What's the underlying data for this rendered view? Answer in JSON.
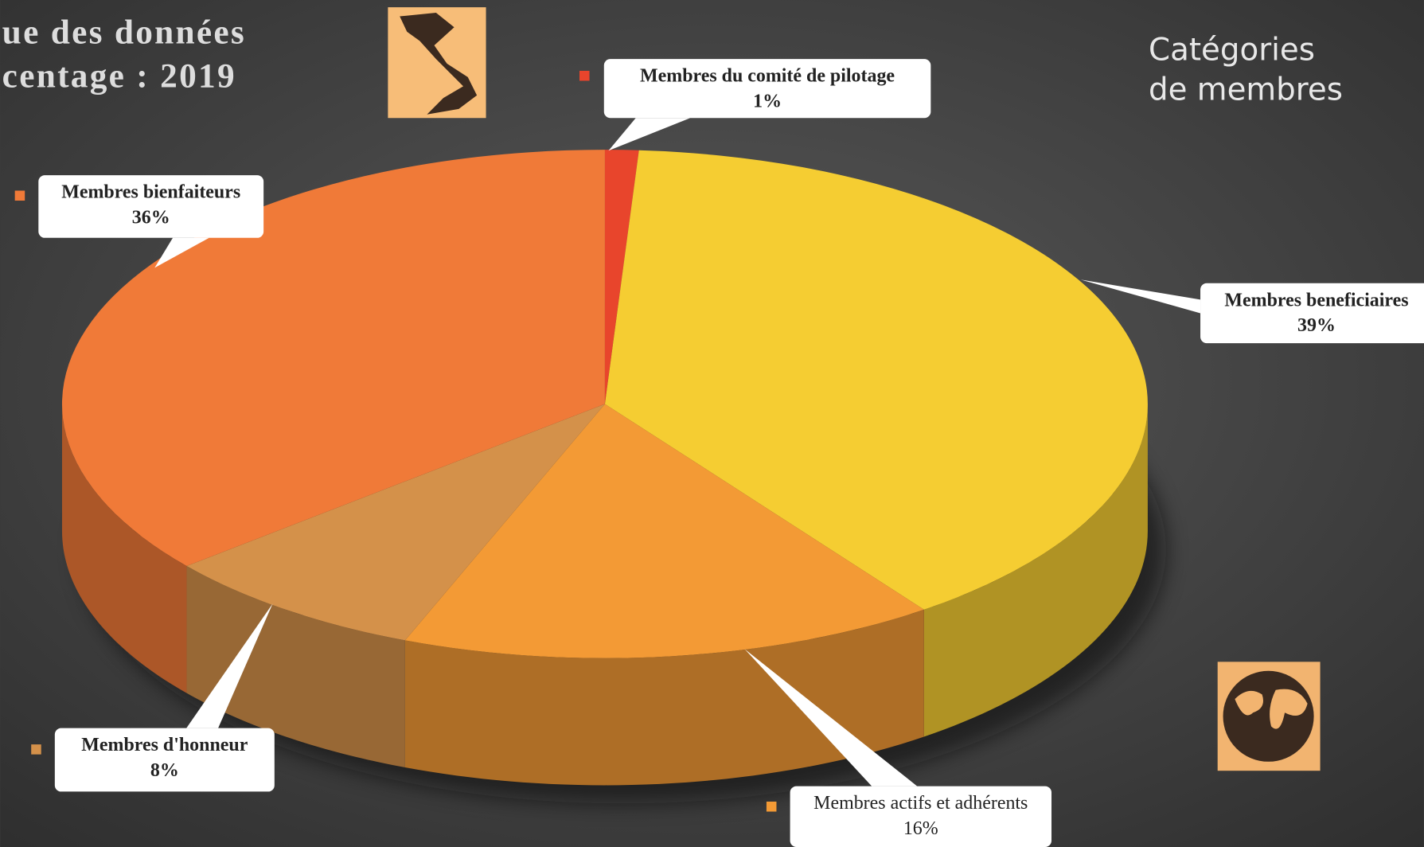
{
  "chart_data": {
    "type": "pie",
    "title": [
      "ue des données",
      "centage : 2019"
    ],
    "legend_title": [
      "Catégories",
      "de membres"
    ],
    "categories": [
      "Membres du comité de pilotage",
      "Membres beneficiaires",
      "Membres actifs et adhérents",
      "Membres d'honneur",
      "Membres bienfaiteurs"
    ],
    "values": [
      1,
      39,
      16,
      8,
      36
    ],
    "value_labels": [
      "1%",
      "39%",
      "16%",
      "8%",
      "36%"
    ],
    "colors": [
      "#e8452c",
      "#f5cd32",
      "#f39a35",
      "#d4914a",
      "#f07a38"
    ]
  }
}
